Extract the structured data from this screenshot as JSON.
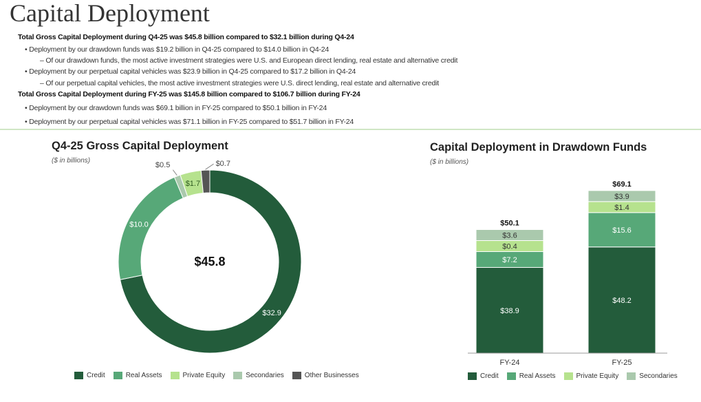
{
  "title": "Capital Deployment",
  "bullets": [
    {
      "text": "Total Gross Capital Deployment during Q4-25 was $45.8 billion compared to $32.1 billion during Q4-24",
      "level": 0
    },
    {
      "text": "•  Deployment by our drawdown funds was $19.2 billion in Q4-25 compared to $14.0 billion in Q4-24",
      "level": 1
    },
    {
      "text": "–  Of our drawdown funds, the most active investment strategies were U.S. and European direct lending, real estate and alternative credit",
      "level": 2
    },
    {
      "text": "•  Deployment by our perpetual capital vehicles was $23.9 billion in Q4-25 compared to $17.2 billion in Q4-24",
      "level": 1
    },
    {
      "text": "–  Of our perpetual capital vehicles, the most active investment strategies were U.S. direct lending, real estate and alternative credit",
      "level": 2
    },
    {
      "text": "Total Gross Capital Deployment during FY-25 was $145.8 billion compared to $106.7 billion during FY-24",
      "level": 0
    },
    {
      "text": "•  Deployment by our drawdown funds was $69.1 billion in FY-25 compared to $50.1 billion in FY-24",
      "level": 1
    },
    {
      "text": "•  Deployment by our perpetual capital vehicles was $71.1 billion in FY-25 compared to $51.7 billion in FY-24",
      "level": 1
    }
  ],
  "colors": {
    "Credit": "#235c3b",
    "Real Assets": "#57a878",
    "Private Equity": "#b6e28e",
    "Secondaries": "#aac9ad",
    "Other Businesses": "#555555"
  },
  "chart_data": [
    {
      "type": "pie",
      "title": "Q4-25 Gross Capital Deployment",
      "subtitle": "($ in billions)",
      "center_label": "$45.8",
      "categories": [
        "Credit",
        "Real Assets",
        "Secondaries",
        "Private Equity",
        "Other Businesses"
      ],
      "values": [
        32.9,
        10.0,
        0.5,
        1.7,
        0.7
      ],
      "labels": [
        "$32.9",
        "$10.0",
        "$0.5",
        "$1.7",
        "$0.7"
      ],
      "legend": [
        "Credit",
        "Real Assets",
        "Private Equity",
        "Secondaries",
        "Other Businesses"
      ],
      "legend_position": "bottom"
    },
    {
      "type": "bar",
      "stacked": true,
      "title": "Capital Deployment in Drawdown Funds",
      "subtitle": "($ in billions)",
      "categories": [
        "FY-24",
        "FY-25"
      ],
      "series": [
        {
          "name": "Credit",
          "values": [
            38.9,
            48.2
          ],
          "labels": [
            "$38.9",
            "$48.2"
          ]
        },
        {
          "name": "Real Assets",
          "values": [
            7.2,
            15.6
          ],
          "labels": [
            "$7.2",
            "$15.6"
          ]
        },
        {
          "name": "Private Equity",
          "values": [
            0.4,
            1.4
          ],
          "labels": [
            "$0.4",
            "$1.4"
          ]
        },
        {
          "name": "Secondaries",
          "values": [
            3.6,
            3.9
          ],
          "labels": [
            "$3.6",
            "$3.9"
          ]
        }
      ],
      "totals": [
        "$50.1",
        "$69.1"
      ],
      "legend": [
        "Credit",
        "Real Assets",
        "Private Equity",
        "Secondaries"
      ],
      "legend_position": "bottom"
    }
  ]
}
